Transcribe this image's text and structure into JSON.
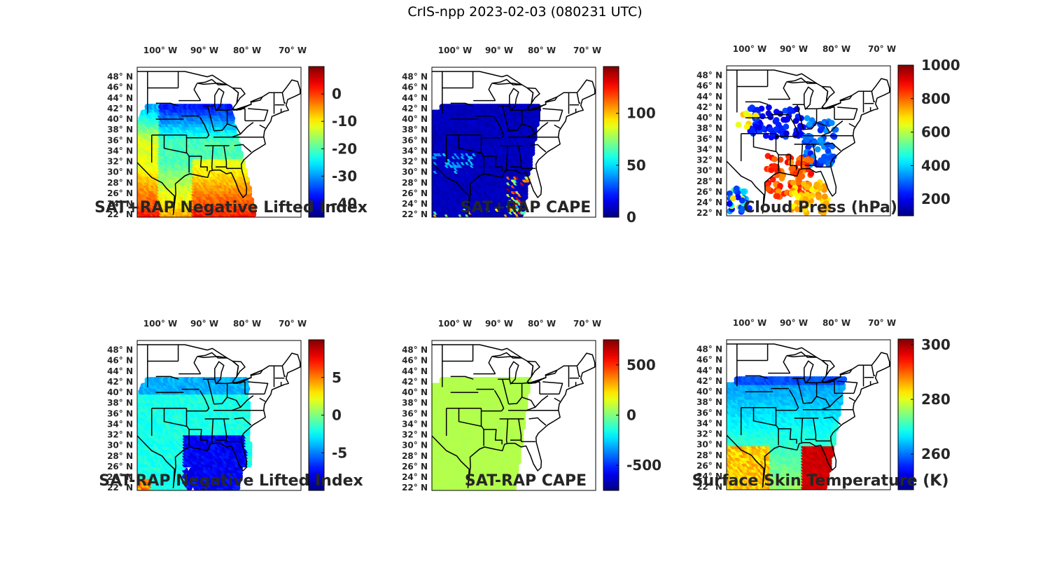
{
  "figure": {
    "title": "CrIS-npp 2023-02-03 (080231 UTC)"
  },
  "longitude_labels": [
    "100° W",
    "90° W",
    "80° W",
    "70° W"
  ],
  "latitude_labels": [
    "48° N",
    "46° N",
    "44° N",
    "42° N",
    "40° N",
    "38° N",
    "36° N",
    "34° N",
    "32° N",
    "30° N",
    "28° N",
    "26° N",
    "24° N",
    "22° N"
  ],
  "colormap": "jet",
  "panels": [
    {
      "id": "p1",
      "title": "SAT+RAP Negative Lifted Index",
      "clim": [
        -45,
        10
      ],
      "ticks": [
        "0",
        "-10",
        "-20",
        "-30",
        "-40"
      ],
      "tick_values": [
        0,
        -10,
        -20,
        -30,
        -40
      ],
      "field": "li_plus",
      "coverage": "swath-west"
    },
    {
      "id": "p2",
      "title": "SAT+RAP CAPE",
      "clim": [
        0,
        145
      ],
      "ticks": [
        "100",
        "50",
        "0"
      ],
      "tick_values": [
        100,
        50,
        0
      ],
      "field": "cape_plus",
      "coverage": "swath-east"
    },
    {
      "id": "p3",
      "title": "Cloud Press (hPa)",
      "clim": [
        100,
        1000
      ],
      "ticks": [
        "1000",
        "800",
        "600",
        "400",
        "200"
      ],
      "tick_values": [
        1000,
        800,
        600,
        400,
        200
      ],
      "field": "cloud",
      "coverage": "cloud-scatter"
    },
    {
      "id": "p4",
      "title": "SAT-RAP Negative Lifted Index",
      "clim": [
        -10,
        10
      ],
      "ticks": [
        "5",
        "0",
        "-5"
      ],
      "tick_values": [
        5,
        0,
        -5
      ],
      "field": "li_minus",
      "coverage": "swath-west"
    },
    {
      "id": "p5",
      "title": "SAT-RAP CAPE",
      "clim": [
        -750,
        750
      ],
      "ticks": [
        "500",
        "0",
        "-500"
      ],
      "tick_values": [
        500,
        0,
        -500
      ],
      "field": "cape_minus",
      "coverage": "swath-east"
    },
    {
      "id": "p6",
      "title": "Surface Skin Temperature (K)",
      "clim": [
        247,
        302
      ],
      "ticks": [
        "300",
        "280",
        "260"
      ],
      "tick_values": [
        300,
        280,
        260
      ],
      "field": "skin",
      "coverage": "swath-full"
    }
  ]
}
